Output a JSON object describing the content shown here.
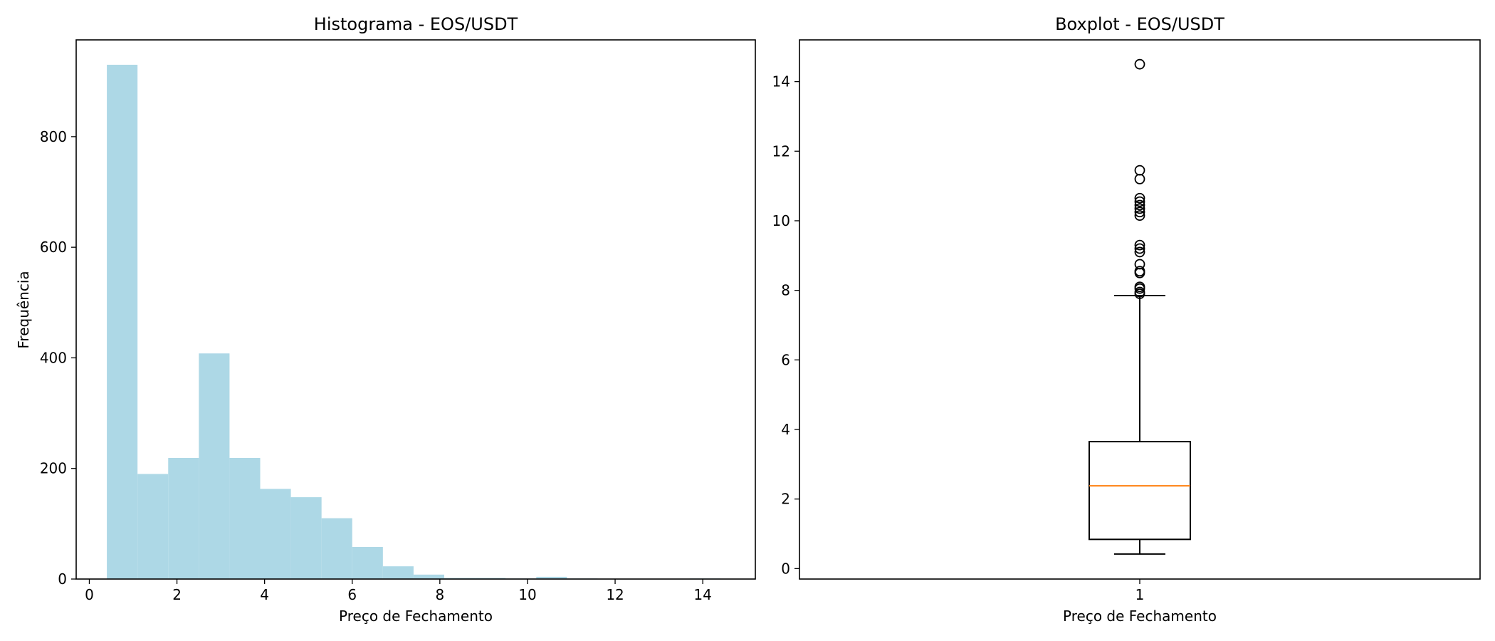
{
  "colors": {
    "hist_fill": "#add8e6",
    "median_line": "#ff7f0e",
    "axis": "#000000"
  },
  "chart_data": [
    {
      "type": "bar",
      "subtype": "histogram",
      "title": "Histograma - EOS/USDT",
      "xlabel": "Preço de Fechamento",
      "ylabel": "Frequência",
      "xlim": [
        -0.3,
        15.2
      ],
      "ylim": [
        0,
        975
      ],
      "xticks": [
        0,
        2,
        4,
        6,
        8,
        10,
        12,
        14
      ],
      "yticks": [
        0,
        200,
        400,
        600,
        800
      ],
      "bin_edges": [
        0.4,
        1.1,
        1.8,
        2.5,
        3.2,
        3.9,
        4.6,
        5.3,
        6.0,
        6.7,
        7.4,
        8.1,
        8.8,
        9.5,
        10.2,
        10.9,
        11.6,
        12.3,
        13.0,
        13.7,
        14.4
      ],
      "counts": [
        930,
        190,
        219,
        408,
        219,
        163,
        148,
        110,
        58,
        23,
        8,
        2,
        2,
        1,
        4,
        1,
        0,
        0,
        0,
        1
      ],
      "grid": false
    },
    {
      "type": "boxplot",
      "title": "Boxplot - EOS/USDT",
      "xlabel": "Preço de Fechamento",
      "ylabel": "",
      "categories": [
        "1"
      ],
      "ylim": [
        -0.3,
        15.2
      ],
      "yticks": [
        0,
        2,
        4,
        6,
        8,
        10,
        12,
        14
      ],
      "whisker_low": 0.42,
      "q1": 0.84,
      "median": 2.38,
      "q3": 3.65,
      "whisker_high": 7.85,
      "outliers": [
        7.9,
        7.95,
        8.05,
        8.1,
        8.5,
        8.55,
        8.75,
        9.1,
        9.2,
        9.3,
        10.15,
        10.25,
        10.35,
        10.45,
        10.55,
        10.65,
        11.2,
        11.45,
        14.5
      ],
      "grid": false
    }
  ]
}
